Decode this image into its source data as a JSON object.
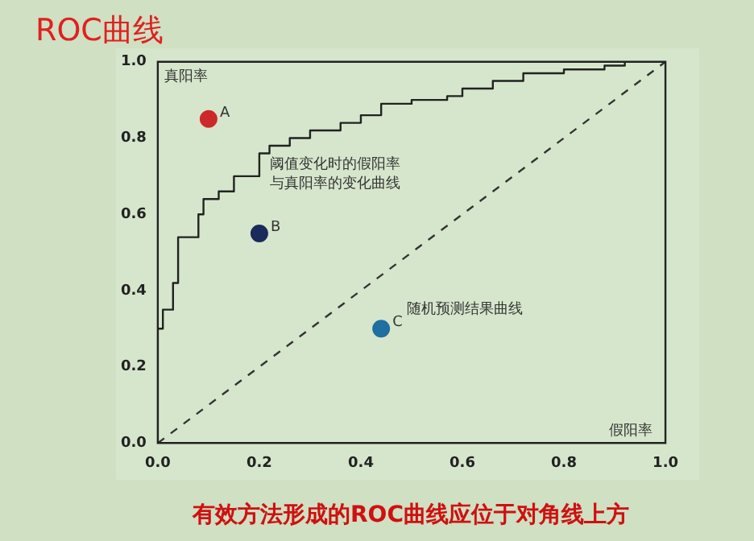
{
  "chart_data": {
    "type": "line",
    "title": "ROC曲线",
    "xlabel": "假阳率",
    "ylabel": "真阳率",
    "xlim": [
      0,
      1
    ],
    "ylim": [
      0,
      1
    ],
    "xticks": [
      {
        "value": 0,
        "label": "0.0"
      },
      {
        "value": 0.2,
        "label": "0.2"
      },
      {
        "value": 0.4,
        "label": "0.4"
      },
      {
        "value": 0.6,
        "label": "0.6"
      },
      {
        "value": 0.8,
        "label": "0.8"
      },
      {
        "value": 1,
        "label": "1.0"
      }
    ],
    "yticks": [
      {
        "value": 0,
        "label": "0.0"
      },
      {
        "value": 0.2,
        "label": "0.2"
      },
      {
        "value": 0.4,
        "label": "0.4"
      },
      {
        "value": 0.6,
        "label": "0.6"
      },
      {
        "value": 0.8,
        "label": "0.8"
      },
      {
        "value": 1,
        "label": "1.0"
      }
    ],
    "grid": false,
    "legend": false,
    "series": [
      {
        "type": "step",
        "color": "#222222",
        "x": [
          0,
          0,
          0.01,
          0.03,
          0.04,
          0.08,
          0.09,
          0.12,
          0.15,
          0.2,
          0.22,
          0.26,
          0.3,
          0.36,
          0.4,
          0.44,
          0.5,
          0.57,
          0.6,
          0.66,
          0.72,
          0.8,
          0.88,
          0.92,
          1
        ],
        "values": [
          0,
          0.3,
          0.35,
          0.42,
          0.54,
          0.6,
          0.64,
          0.66,
          0.7,
          0.76,
          0.78,
          0.8,
          0.82,
          0.84,
          0.86,
          0.89,
          0.9,
          0.91,
          0.93,
          0.95,
          0.97,
          0.98,
          0.99,
          1,
          1
        ]
      },
      {
        "type": "line",
        "line_style": "dashed",
        "color": "#333333",
        "x": [
          0,
          1
        ],
        "values": [
          0,
          1
        ]
      },
      {
        "type": "scatter",
        "marker": "circle",
        "x": [
          0.1,
          0.2,
          0.44
        ],
        "values": [
          0.85,
          0.55,
          0.3
        ],
        "colors": [
          "#cc2a2a",
          "#1a2a5a",
          "#1f6fa0"
        ]
      }
    ],
    "annotations": [
      {
        "text": "A",
        "x": 0.1,
        "y": 0.85
      },
      {
        "text": "B",
        "x": 0.2,
        "y": 0.55
      },
      {
        "text": "C",
        "x": 0.44,
        "y": 0.3
      },
      "阈值变化时的假阳率",
      "与真阳率的变化曲线",
      "随机预测结果曲线",
      "有效方法形成的ROC曲线应位于对角线上方"
    ]
  }
}
